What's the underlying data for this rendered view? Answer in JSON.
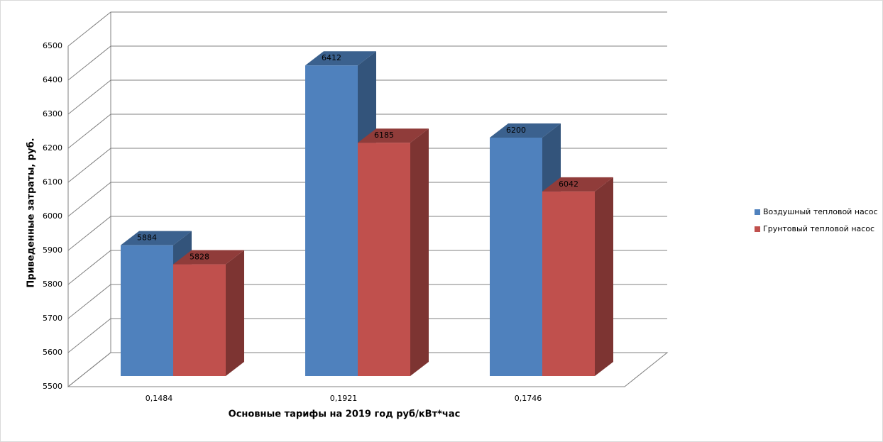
{
  "chart_data": {
    "type": "bar3d",
    "x_label": "Основные тарифы на 2019 год руб/кВт*час",
    "y_label": "Приведенные затраты, руб.",
    "categories": [
      "0,1484",
      "0,1921",
      "0,1746"
    ],
    "series": [
      {
        "name": "Воздушный тепловой насос",
        "color": "#4f81bd",
        "values": [
          5884,
          6412,
          6200
        ]
      },
      {
        "name": "Грунтовый тепловой насос",
        "color": "#c0504d",
        "values": [
          5828,
          6185,
          6042
        ]
      }
    ],
    "ylim": [
      5500,
      6500
    ],
    "yticks": [
      5500,
      5600,
      5700,
      5800,
      5900,
      6000,
      6100,
      6200,
      6300,
      6400,
      6500
    ],
    "grid": true
  }
}
